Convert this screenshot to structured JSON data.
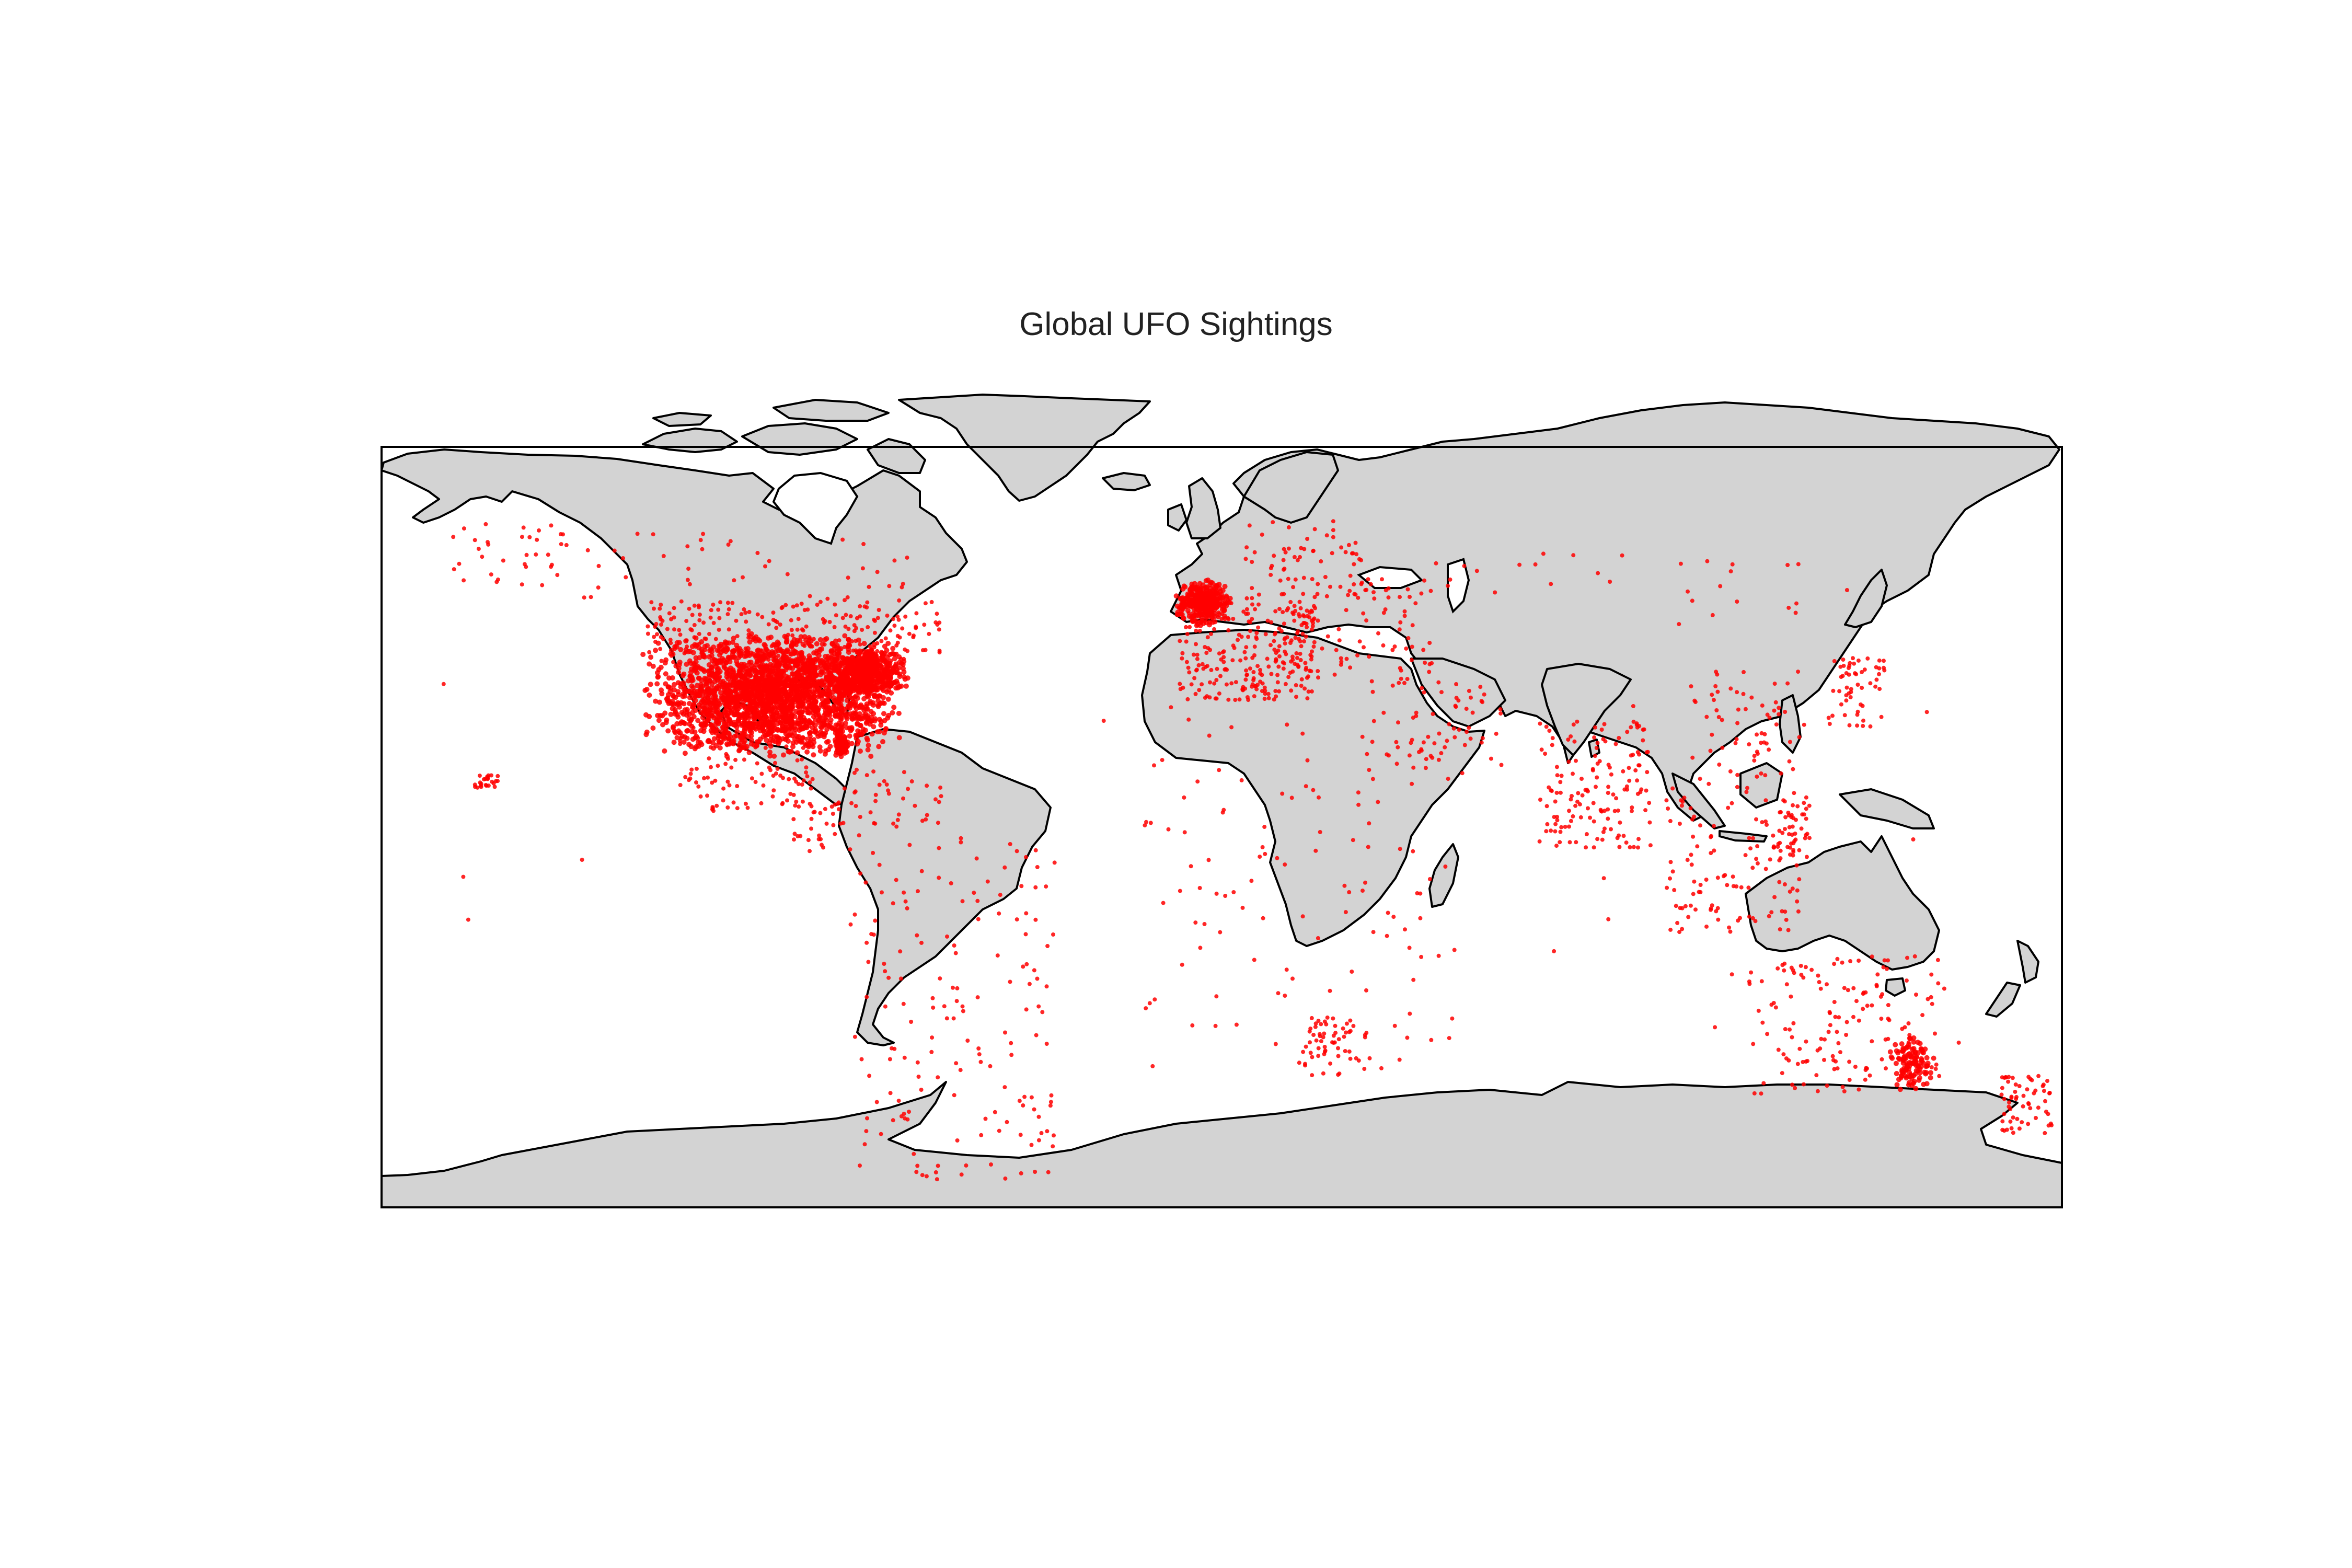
{
  "title": "Global UFO Sightings",
  "colors": {
    "land": "#d3d3d3",
    "coast": "#000000",
    "sighting": "#ff0000",
    "background": "#ffffff"
  },
  "chart_data": {
    "type": "scatter",
    "title": "Global UFO Sightings",
    "xlabel": "",
    "ylabel": "",
    "xlim": [
      -180,
      180
    ],
    "ylim": [
      -90,
      90
    ],
    "grid": false,
    "legend": "none",
    "series": [
      {
        "color": "#ff0000",
        "clusters": [
          {
            "region": "contiguous-usa",
            "lon": [
              -124,
              -68
            ],
            "lat": [
              25,
              49
            ],
            "count": 2400,
            "dense": true
          },
          {
            "region": "usa-northeast",
            "lon": [
              -85,
              -67
            ],
            "lat": [
              37,
              46
            ],
            "count": 500,
            "dense": true
          },
          {
            "region": "florida",
            "lon": [
              -83,
              -80
            ],
            "lat": [
              25,
              30
            ],
            "count": 120,
            "dense": true
          },
          {
            "region": "canada-south",
            "lon": [
              -123,
              -60
            ],
            "lat": [
              43,
              55
            ],
            "count": 260
          },
          {
            "region": "canada-north",
            "lon": [
              -140,
              -65
            ],
            "lat": [
              55,
              68
            ],
            "count": 40
          },
          {
            "region": "alaska",
            "lon": [
              -165,
              -140
            ],
            "lat": [
              57,
              70
            ],
            "count": 35
          },
          {
            "region": "hawaii",
            "lon": [
              -160,
              -155
            ],
            "lat": [
              19,
              22
            ],
            "count": 25
          },
          {
            "region": "mexico",
            "lon": [
              -117,
              -87
            ],
            "lat": [
              15,
              32
            ],
            "count": 110
          },
          {
            "region": "caribbean",
            "lon": [
              -85,
              -60
            ],
            "lat": [
              12,
              23
            ],
            "count": 40
          },
          {
            "region": "central-america",
            "lon": [
              -92,
              -77
            ],
            "lat": [
              7,
              17
            ],
            "count": 30
          },
          {
            "region": "south-america",
            "lon": [
              -80,
              -35
            ],
            "lat": [
              -55,
              10
            ],
            "count": 160
          },
          {
            "region": "uk-ireland",
            "lon": [
              -10,
              2
            ],
            "lat": [
              50,
              59
            ],
            "count": 350,
            "dense": true
          },
          {
            "region": "western-europe",
            "lon": [
              -9,
              20
            ],
            "lat": [
              36,
              55
            ],
            "count": 260
          },
          {
            "region": "scandinavia",
            "lon": [
              5,
              30
            ],
            "lat": [
              55,
              70
            ],
            "count": 60
          },
          {
            "region": "eastern-europe",
            "lon": [
              14,
              45
            ],
            "lat": [
              40,
              60
            ],
            "count": 90
          },
          {
            "region": "middle-east",
            "lon": [
              30,
              60
            ],
            "lat": [
              20,
              40
            ],
            "count": 70
          },
          {
            "region": "russia",
            "lon": [
              45,
              140
            ],
            "lat": [
              50,
              65
            ],
            "count": 30
          },
          {
            "region": "india",
            "lon": [
              68,
              92
            ],
            "lat": [
              8,
              32
            ],
            "count": 150
          },
          {
            "region": "china",
            "lon": [
              100,
              125
            ],
            "lat": [
              22,
              42
            ],
            "count": 60
          },
          {
            "region": "japan",
            "lon": [
              130,
              142
            ],
            "lat": [
              31,
              44
            ],
            "count": 55
          },
          {
            "region": "southeast-asia",
            "lon": [
              95,
              125
            ],
            "lat": [
              -8,
              22
            ],
            "count": 120
          },
          {
            "region": "philippines",
            "lon": [
              118,
              126
            ],
            "lat": [
              6,
              18
            ],
            "count": 45
          },
          {
            "region": "africa",
            "lon": [
              -17,
              50
            ],
            "lat": [
              -35,
              35
            ],
            "count": 110
          },
          {
            "region": "south-africa",
            "lon": [
              17,
              32
            ],
            "lat": [
              -35,
              -24
            ],
            "count": 60
          },
          {
            "region": "australia",
            "lon": [
              113,
              154
            ],
            "lat": [
              -39,
              -12
            ],
            "count": 150
          },
          {
            "region": "australia-southeast",
            "lon": [
              143,
              153
            ],
            "lat": [
              -38,
              -27
            ],
            "count": 120,
            "dense": true
          },
          {
            "region": "new-zealand",
            "lon": [
              167,
              178
            ],
            "lat": [
              -46,
              -35
            ],
            "count": 60
          },
          {
            "region": "oceans",
            "lon": [
              -180,
              180
            ],
            "lat": [
              -40,
              40
            ],
            "count": 25
          }
        ]
      }
    ]
  }
}
